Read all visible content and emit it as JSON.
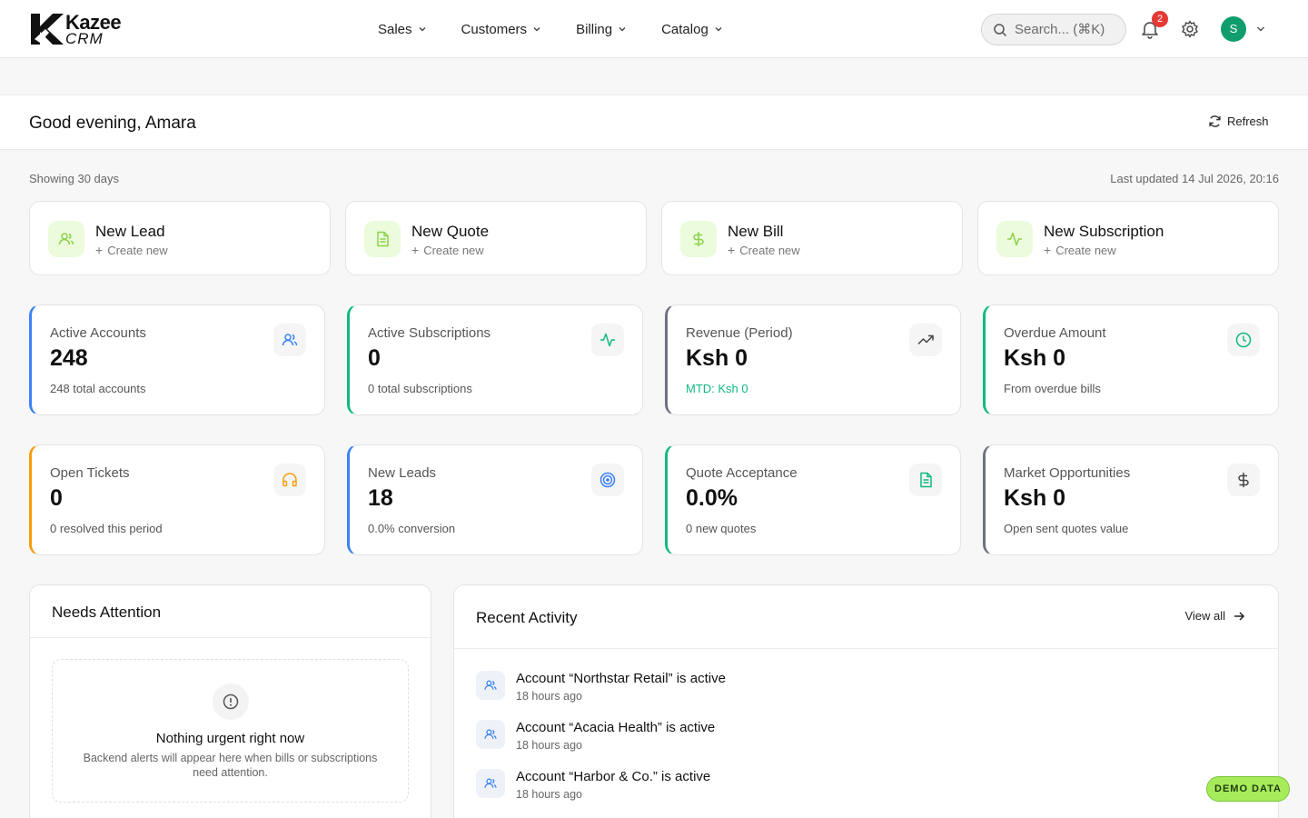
{
  "brand": {
    "name": "Kazee",
    "sub": "CRM"
  },
  "nav": {
    "items": [
      {
        "label": "Sales"
      },
      {
        "label": "Customers"
      },
      {
        "label": "Billing"
      },
      {
        "label": "Catalog"
      }
    ]
  },
  "search": {
    "placeholder": "Search... (⌘K)"
  },
  "notifications": {
    "count": "2"
  },
  "user": {
    "initial": "S"
  },
  "greeting": "Good evening, Amara",
  "refresh_label": "Refresh",
  "range_label": "Showing 30 days",
  "updated_label": "Last updated 14 Jul 2026, 20:16",
  "quick_actions": [
    {
      "title": "New Lead",
      "sub": "Create new",
      "icon": "users-icon"
    },
    {
      "title": "New Quote",
      "sub": "Create new",
      "icon": "document-icon"
    },
    {
      "title": "New Bill",
      "sub": "Create new",
      "icon": "dollar-icon"
    },
    {
      "title": "New Subscription",
      "sub": "Create new",
      "icon": "activity-icon"
    }
  ],
  "stats": [
    {
      "label": "Active Accounts",
      "value": "248",
      "sub": "248 total accounts",
      "accent": "#3b82f6",
      "icon": "users-icon"
    },
    {
      "label": "Active Subscriptions",
      "value": "0",
      "sub": "0 total subscriptions",
      "accent": "#10b981",
      "icon": "activity-icon"
    },
    {
      "label": "Revenue (Period)",
      "value": "Ksh 0",
      "sub": "MTD: Ksh 0",
      "accent": "#6b7280",
      "icon": "trending-up-icon"
    },
    {
      "label": "Overdue Amount",
      "value": "Ksh 0",
      "sub": "From overdue bills",
      "accent": "#10b981",
      "icon": "clock-icon"
    },
    {
      "label": "Open Tickets",
      "value": "0",
      "sub": "0 resolved this period",
      "accent": "#f59e0b",
      "icon": "headphones-icon"
    },
    {
      "label": "New Leads",
      "value": "18",
      "sub": "0.0% conversion",
      "accent": "#3b82f6",
      "icon": "target-icon"
    },
    {
      "label": "Quote Acceptance",
      "value": "0.0%",
      "sub": "0 new quotes",
      "accent": "#10b981",
      "icon": "document-icon"
    },
    {
      "label": "Market Opportunities",
      "value": "Ksh 0",
      "sub": "Open sent quotes value",
      "accent": "#6b7280",
      "icon": "dollar-icon"
    }
  ],
  "attention": {
    "title": "Needs Attention",
    "empty_title": "Nothing urgent right now",
    "empty_desc": "Backend alerts will appear here when bills or subscriptions need attention."
  },
  "activity": {
    "title": "Recent Activity",
    "view_all": "View all",
    "items": [
      {
        "title": "Account “Northstar Retail” is active",
        "time": "18 hours ago"
      },
      {
        "title": "Account “Acacia Health” is active",
        "time": "18 hours ago"
      },
      {
        "title": "Account “Harbor & Co.” is active",
        "time": "18 hours ago"
      }
    ]
  },
  "demo_label": "DEMO DATA",
  "colors": {
    "brand_green": "#0f9d6e",
    "lime_bg": "#ecfbdc",
    "lime_icon": "#8bd14a",
    "badge_red": "#e53935"
  }
}
